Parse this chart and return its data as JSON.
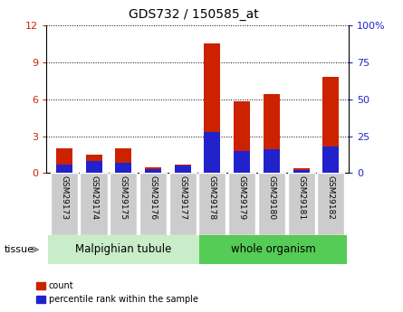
{
  "title": "GDS732 / 150585_at",
  "samples": [
    "GSM29173",
    "GSM29174",
    "GSM29175",
    "GSM29176",
    "GSM29177",
    "GSM29178",
    "GSM29179",
    "GSM29180",
    "GSM29181",
    "GSM29182"
  ],
  "count_values": [
    2.0,
    1.5,
    2.0,
    0.5,
    0.7,
    10.5,
    5.8,
    6.4,
    0.4,
    7.8
  ],
  "percentile_values": [
    6.0,
    8.0,
    7.0,
    3.0,
    5.0,
    28.0,
    15.0,
    16.0,
    2.0,
    18.0
  ],
  "groups": [
    {
      "label": "Malpighian tubule",
      "start": 0,
      "end": 5,
      "color": "#c8edc8"
    },
    {
      "label": "whole organism",
      "start": 5,
      "end": 10,
      "color": "#55cc55"
    }
  ],
  "ylim_left": [
    0,
    12
  ],
  "ylim_right": [
    0,
    100
  ],
  "yticks_left": [
    0,
    3,
    6,
    9,
    12
  ],
  "yticks_right": [
    0,
    25,
    50,
    75,
    100
  ],
  "ytick_labels_right": [
    "0",
    "25",
    "50",
    "75",
    "100%"
  ],
  "bar_color_red": "#cc2200",
  "bar_color_blue": "#2222cc",
  "tick_color_left": "#cc2200",
  "tick_color_right": "#2222cc",
  "bg_color_plot": "#ffffff",
  "xtick_box_color": "#cccccc",
  "legend_count": "count",
  "legend_percentile": "percentile rank within the sample",
  "tissue_label": "tissue",
  "bar_width": 0.55
}
